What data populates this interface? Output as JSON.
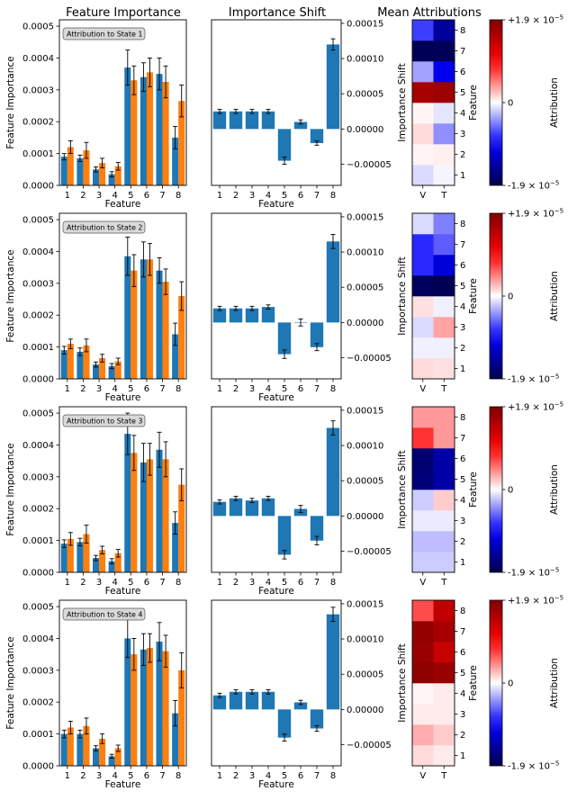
{
  "column_titles": [
    "Feature Importance",
    "Importance Shift",
    "Mean Attributions"
  ],
  "colors": {
    "blue": "#1f77b4",
    "orange": "#ff7f0e",
    "annotation_bg": "#d9d9d9"
  },
  "colorbar": {
    "label": "Attribution",
    "max_label": "+1.9 × 10",
    "min_label": "-1.9 × 10",
    "zero_label": "0",
    "exponent": "−5",
    "vmax": 1.9e-05
  },
  "chart_data": [
    {
      "type": "bar",
      "panel": "feature_importance",
      "annotation": "Attribution to State 1",
      "categories": [
        "1",
        "2",
        "3",
        "4",
        "5",
        "6",
        "7",
        "8"
      ],
      "xlabel": "Feature",
      "ylabel": "Feature Importance",
      "ylim": [
        0,
        0.00052
      ],
      "yticks": [
        0,
        0.0001,
        0.0002,
        0.0003,
        0.0004,
        0.0005
      ],
      "ytick_labels": [
        "0.0000",
        "0.0001",
        "0.0002",
        "0.0003",
        "0.0004",
        "0.0005"
      ],
      "series": [
        {
          "color": "#1f77b4",
          "values": [
            9e-05,
            8.5e-05,
            5e-05,
            3.5e-05,
            0.00037,
            0.00034,
            0.00035,
            0.00015
          ],
          "errors": [
            1e-05,
            1e-05,
            8e-06,
            8e-06,
            5.5e-05,
            4.5e-05,
            5e-05,
            3.5e-05
          ]
        },
        {
          "color": "#ff7f0e",
          "values": [
            0.00012,
            0.00011,
            7e-05,
            6e-05,
            0.00033,
            0.000355,
            0.000325,
            0.000265
          ],
          "errors": [
            2e-05,
            2.5e-05,
            1.5e-05,
            1.2e-05,
            4.5e-05,
            4.5e-05,
            5e-05,
            5e-05
          ]
        }
      ]
    },
    {
      "type": "bar",
      "panel": "importance_shift",
      "categories": [
        "1",
        "2",
        "3",
        "4",
        "5",
        "6",
        "7",
        "8"
      ],
      "xlabel": "Feature",
      "ylabel": "Importance Shift",
      "ylim": [
        -8e-05,
        0.000155
      ],
      "yticks": [
        -5e-05,
        0,
        5e-05,
        0.0001,
        0.00015
      ],
      "ytick_labels": [
        "−0.00005",
        "0.00000",
        "0.00005",
        "0.00010",
        "0.00015"
      ],
      "series": [
        {
          "color": "#1f77b4",
          "values": [
            2.5e-05,
            2.5e-05,
            2.5e-05,
            2.5e-05,
            -4.5e-05,
            1e-05,
            -2e-05,
            0.00012
          ],
          "errors": [
            3e-06,
            3e-06,
            3e-06,
            3e-06,
            5e-06,
            3e-06,
            3e-06,
            8e-06
          ]
        }
      ]
    },
    {
      "type": "heatmap",
      "panel": "mean_attributions",
      "xcategories": [
        "V",
        "T"
      ],
      "ycategories": [
        "1",
        "2",
        "3",
        "4",
        "5",
        "6",
        "7",
        "8"
      ],
      "ylabel": "Feature",
      "clim": [
        -1.9e-05,
        1.9e-05
      ],
      "values": [
        [
          -0.07,
          -0.02
        ],
        [
          0.02,
          0.03
        ],
        [
          0.07,
          -0.22
        ],
        [
          0.02,
          -0.05
        ],
        [
          0.85,
          0.88
        ],
        [
          -0.18,
          -0.55
        ],
        [
          -0.97,
          -0.97
        ],
        [
          -0.38,
          -0.78
        ]
      ]
    },
    {
      "type": "bar",
      "panel": "feature_importance",
      "annotation": "Attribution to State 2",
      "categories": [
        "1",
        "2",
        "3",
        "4",
        "5",
        "6",
        "7",
        "8"
      ],
      "xlabel": "Feature",
      "ylabel": "Feature Importance",
      "ylim": [
        0,
        0.00052
      ],
      "yticks": [
        0,
        0.0001,
        0.0002,
        0.0003,
        0.0004,
        0.0005
      ],
      "ytick_labels": [
        "0.0000",
        "0.0001",
        "0.0002",
        "0.0003",
        "0.0004",
        "0.0005"
      ],
      "series": [
        {
          "color": "#1f77b4",
          "values": [
            9e-05,
            8.5e-05,
            4.5e-05,
            4e-05,
            0.000385,
            0.000375,
            0.00034,
            0.00014
          ],
          "errors": [
            1.2e-05,
            1.2e-05,
            8e-06,
            8e-06,
            6e-05,
            5.5e-05,
            4e-05,
            3.5e-05
          ]
        },
        {
          "color": "#ff7f0e",
          "values": [
            0.00011,
            0.000105,
            6.5e-05,
            5.5e-05,
            0.00034,
            0.000375,
            0.000305,
            0.00026
          ],
          "errors": [
            1.5e-05,
            2e-05,
            1.2e-05,
            1e-05,
            5e-05,
            5e-05,
            4e-05,
            4.5e-05
          ]
        }
      ]
    },
    {
      "type": "bar",
      "panel": "importance_shift",
      "categories": [
        "1",
        "2",
        "3",
        "4",
        "5",
        "6",
        "7",
        "8"
      ],
      "xlabel": "Feature",
      "ylabel": "Importance Shift",
      "ylim": [
        -8e-05,
        0.000155
      ],
      "yticks": [
        -5e-05,
        0,
        5e-05,
        0.0001,
        0.00015
      ],
      "ytick_labels": [
        "−0.00005",
        "0.00000",
        "0.00005",
        "0.00010",
        "0.00015"
      ],
      "series": [
        {
          "color": "#1f77b4",
          "values": [
            2e-05,
            2e-05,
            2e-05,
            2.2e-05,
            -4.5e-05,
            0.0,
            -3.5e-05,
            0.000115
          ],
          "errors": [
            3e-06,
            3e-06,
            3e-06,
            3e-06,
            6e-06,
            5e-06,
            5e-06,
            1e-05
          ]
        }
      ]
    },
    {
      "type": "heatmap",
      "panel": "mean_attributions",
      "xcategories": [
        "V",
        "T"
      ],
      "ycategories": [
        "1",
        "2",
        "3",
        "4",
        "5",
        "6",
        "7",
        "8"
      ],
      "ylabel": "Feature",
      "clim": [
        -1.9e-05,
        1.9e-05
      ],
      "values": [
        [
          0.07,
          0.06
        ],
        [
          -0.03,
          -0.03
        ],
        [
          -0.07,
          0.18
        ],
        [
          0.06,
          -0.03
        ],
        [
          -0.95,
          -0.98
        ],
        [
          -0.42,
          -0.6
        ],
        [
          -0.42,
          -0.32
        ],
        [
          -0.07,
          -0.25
        ]
      ]
    },
    {
      "type": "bar",
      "panel": "feature_importance",
      "annotation": "Attribution to State 3",
      "categories": [
        "1",
        "2",
        "3",
        "4",
        "5",
        "6",
        "7",
        "8"
      ],
      "xlabel": "Feature",
      "ylabel": "Feature Importance",
      "ylim": [
        0,
        0.00052
      ],
      "yticks": [
        0,
        0.0001,
        0.0002,
        0.0003,
        0.0004,
        0.0005
      ],
      "ytick_labels": [
        "0.0000",
        "0.0001",
        "0.0002",
        "0.0003",
        "0.0004",
        "0.0005"
      ],
      "series": [
        {
          "color": "#1f77b4",
          "values": [
            9e-05,
            9.5e-05,
            4.5e-05,
            3.5e-05,
            0.000435,
            0.000345,
            0.000385,
            0.000155
          ],
          "errors": [
            1.2e-05,
            1.2e-05,
            8e-06,
            8e-06,
            6.5e-05,
            6e-05,
            5.5e-05,
            3.5e-05
          ]
        },
        {
          "color": "#ff7f0e",
          "values": [
            0.000105,
            0.00012,
            7e-05,
            6e-05,
            0.000375,
            0.000355,
            0.000355,
            0.000275
          ],
          "errors": [
            2e-05,
            2.8e-05,
            1.2e-05,
            1.2e-05,
            5.5e-05,
            5e-05,
            5.5e-05,
            5e-05
          ]
        }
      ]
    },
    {
      "type": "bar",
      "panel": "importance_shift",
      "categories": [
        "1",
        "2",
        "3",
        "4",
        "5",
        "6",
        "7",
        "8"
      ],
      "xlabel": "Feature",
      "ylabel": "Importance Shift",
      "ylim": [
        -8e-05,
        0.000155
      ],
      "yticks": [
        -5e-05,
        0,
        5e-05,
        0.0001,
        0.00015
      ],
      "ytick_labels": [
        "−0.00005",
        "0.00000",
        "0.00005",
        "0.00010",
        "0.00015"
      ],
      "series": [
        {
          "color": "#1f77b4",
          "values": [
            2e-05,
            2.5e-05,
            2.2e-05,
            2.5e-05,
            -5.5e-05,
            1e-05,
            -3.5e-05,
            0.000125
          ],
          "errors": [
            3e-06,
            3e-06,
            3e-06,
            3e-06,
            6e-06,
            5e-06,
            6e-06,
            1e-05
          ]
        }
      ]
    },
    {
      "type": "heatmap",
      "panel": "mean_attributions",
      "xcategories": [
        "V",
        "T"
      ],
      "ycategories": [
        "1",
        "2",
        "3",
        "4",
        "5",
        "6",
        "7",
        "8"
      ],
      "ylabel": "Feature",
      "clim": [
        -1.9e-05,
        1.9e-05
      ],
      "values": [
        [
          -0.1,
          -0.1
        ],
        [
          -0.13,
          -0.13
        ],
        [
          -0.04,
          -0.04
        ],
        [
          -0.1,
          0.1
        ],
        [
          -0.88,
          -0.75
        ],
        [
          -0.9,
          -0.75
        ],
        [
          0.4,
          0.2
        ],
        [
          0.2,
          0.2
        ]
      ]
    },
    {
      "type": "bar",
      "panel": "feature_importance",
      "annotation": "Attribution to State 4",
      "categories": [
        "1",
        "2",
        "3",
        "4",
        "5",
        "6",
        "7",
        "8"
      ],
      "xlabel": "Feature",
      "ylabel": "Feature Importance",
      "ylim": [
        0,
        0.00052
      ],
      "yticks": [
        0,
        0.0001,
        0.0002,
        0.0003,
        0.0004,
        0.0005
      ],
      "ytick_labels": [
        "0.0000",
        "0.0001",
        "0.0002",
        "0.0003",
        "0.0004",
        "0.0005"
      ],
      "series": [
        {
          "color": "#1f77b4",
          "values": [
            0.0001,
            0.0001,
            5.5e-05,
            3e-05,
            0.0004,
            0.000365,
            0.00039,
            0.000165
          ],
          "errors": [
            1.2e-05,
            1.2e-05,
            8e-06,
            6e-06,
            6e-05,
            5e-05,
            6e-05,
            4e-05
          ]
        },
        {
          "color": "#ff7f0e",
          "values": [
            0.00012,
            0.000125,
            8.5e-05,
            5.5e-05,
            0.00035,
            0.00037,
            0.00036,
            0.0003
          ],
          "errors": [
            2e-05,
            2.5e-05,
            1.5e-05,
            1e-05,
            5e-05,
            4.5e-05,
            5e-05,
            5.5e-05
          ]
        }
      ]
    },
    {
      "type": "bar",
      "panel": "importance_shift",
      "categories": [
        "1",
        "2",
        "3",
        "4",
        "5",
        "6",
        "7",
        "8"
      ],
      "xlabel": "Feature",
      "ylabel": "Importance Shift",
      "ylim": [
        -8e-05,
        0.000155
      ],
      "yticks": [
        -5e-05,
        0,
        5e-05,
        0.0001,
        0.00015
      ],
      "ytick_labels": [
        "−0.00005",
        "0.00000",
        "0.00005",
        "0.00010",
        "0.00015"
      ],
      "series": [
        {
          "color": "#1f77b4",
          "values": [
            2e-05,
            2.5e-05,
            2.5e-05,
            2.5e-05,
            -4e-05,
            1e-05,
            -2.7e-05,
            0.000135
          ],
          "errors": [
            3e-06,
            3e-06,
            3e-06,
            3e-06,
            5e-06,
            3e-06,
            4e-06,
            1e-05
          ]
        }
      ]
    },
    {
      "type": "heatmap",
      "panel": "mean_attributions",
      "xcategories": [
        "V",
        "T"
      ],
      "ycategories": [
        "1",
        "2",
        "3",
        "4",
        "5",
        "6",
        "7",
        "8"
      ],
      "ylabel": "Feature",
      "clim": [
        -1.9e-05,
        1.9e-05
      ],
      "values": [
        [
          0.07,
          0.04
        ],
        [
          0.16,
          0.1
        ],
        [
          0.04,
          0.04
        ],
        [
          0.02,
          0.04
        ],
        [
          0.95,
          0.9
        ],
        [
          0.9,
          0.72
        ],
        [
          0.92,
          0.85
        ],
        [
          0.35,
          0.75
        ]
      ]
    }
  ]
}
